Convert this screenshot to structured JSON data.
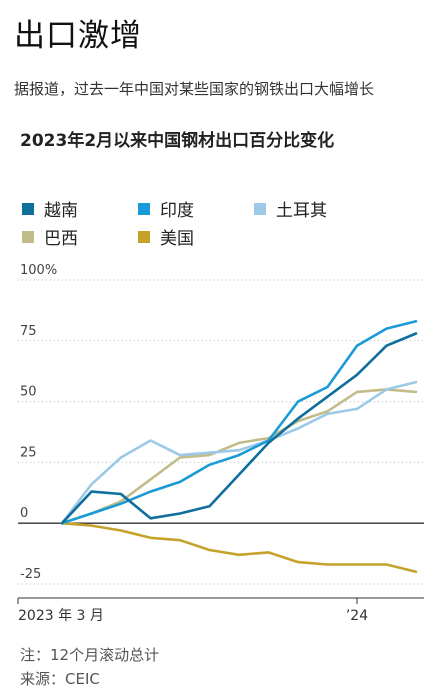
{
  "page": {
    "title": "出口激增",
    "subtitle": "据报道，过去一年中国对某些国家的钢铁出口大幅增长",
    "footnote": "注：12个月滚动总计",
    "source": "来源：CEIC"
  },
  "chart_data": {
    "type": "line",
    "title": "2023年2月以来中国钢材出口百分比变化",
    "y_ticks": [
      "100%",
      "75",
      "50",
      "25",
      "0",
      "-25"
    ],
    "y_tick_values": [
      100,
      75,
      50,
      25,
      0,
      -25
    ],
    "x_tick_labels": [
      "2023 年 3 月",
      "’24"
    ],
    "x_tick_label_indices": [
      0,
      10
    ],
    "ylim": [
      -25,
      100
    ],
    "grid": true,
    "legend_position": "top",
    "x": [
      "2023-02",
      "2023-03",
      "2023-04",
      "2023-05",
      "2023-06",
      "2023-07",
      "2023-08",
      "2023-09",
      "2023-10",
      "2023-11",
      "2023-12",
      "2024-01",
      "2024-02",
      "2024-03"
    ],
    "series": [
      {
        "name": "越南",
        "color": "#0f6e9c",
        "values": [
          0,
          13,
          12,
          2,
          4,
          7,
          20,
          33,
          43,
          52,
          61,
          73,
          78,
          null
        ]
      },
      {
        "name": "印度",
        "color": "#1a9ad6",
        "values": [
          0,
          4,
          8,
          13,
          17,
          24,
          28,
          34,
          50,
          56,
          73,
          80,
          83,
          null
        ]
      },
      {
        "name": "土耳其",
        "color": "#9ccae6",
        "values": [
          0,
          16,
          27,
          34,
          28,
          29,
          30,
          34,
          39,
          45,
          47,
          55,
          58,
          null
        ]
      },
      {
        "name": "巴西",
        "color": "#c2bb8a",
        "values": [
          0,
          4,
          9,
          18,
          27,
          28,
          33,
          35,
          42,
          46,
          54,
          55,
          54,
          null
        ]
      },
      {
        "name": "美国",
        "color": "#c4a22b",
        "values": [
          0,
          -1,
          -3,
          -6,
          -7,
          -11,
          -13,
          -12,
          -16,
          -17,
          -17,
          -17,
          -20,
          null
        ]
      }
    ]
  }
}
